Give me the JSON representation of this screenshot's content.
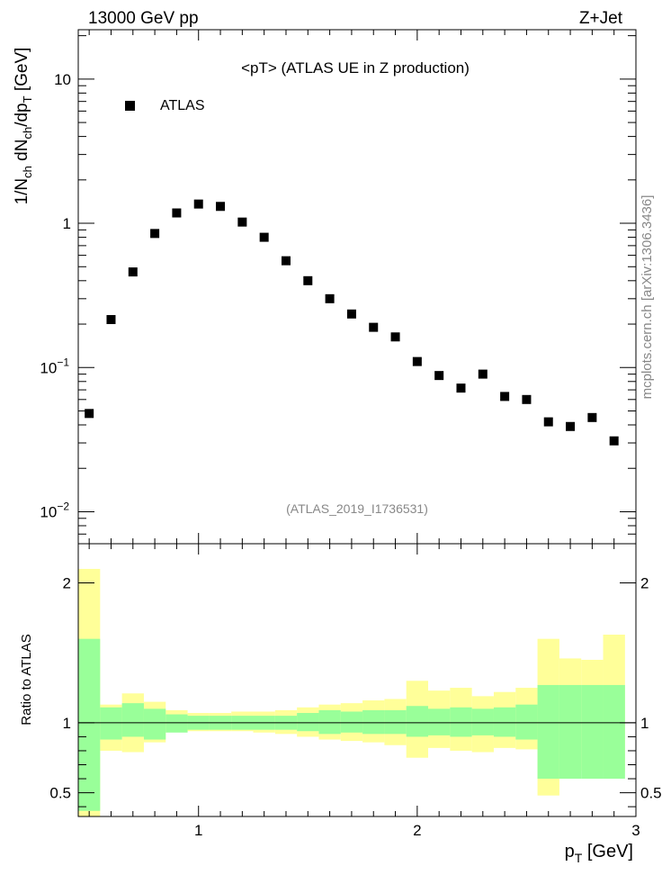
{
  "header": {
    "left": "13000 GeV pp",
    "right": "Z+Jet"
  },
  "side_label": "mcplots.cern.ch [arXiv:1306.3436]",
  "chart_data": [
    {
      "type": "scatter",
      "title": "<pT> (ATLAS UE in Z production)",
      "analysis_tag": "(ATLAS_2019_I1736531)",
      "xlabel": "p_T [GeV]",
      "ylabel": "1/N_ch dN_ch/dp_T [GeV]",
      "yscale": "log",
      "xlim": [
        0.45,
        3.0
      ],
      "ylim": [
        0.006,
        22
      ],
      "legend": {
        "position": "top-left",
        "entries": [
          "ATLAS"
        ]
      },
      "x_ticks": [
        1,
        2,
        3
      ],
      "y_ticks": [
        {
          "value": 10,
          "label": "10",
          "sup": ""
        },
        {
          "value": 1,
          "label": "1",
          "sup": ""
        },
        {
          "value": 0.1,
          "label": "10",
          "sup": "−1"
        },
        {
          "value": 0.01,
          "label": "10",
          "sup": "−2"
        }
      ],
      "series": [
        {
          "name": "ATLAS",
          "x": [
            0.5,
            0.6,
            0.7,
            0.8,
            0.9,
            1.0,
            1.1,
            1.2,
            1.3,
            1.4,
            1.5,
            1.6,
            1.7,
            1.8,
            1.9,
            2.0,
            2.1,
            2.2,
            2.3,
            2.4,
            2.5,
            2.6,
            2.7,
            2.8,
            2.9
          ],
          "y": [
            0.048,
            0.215,
            0.46,
            0.85,
            1.18,
            1.36,
            1.31,
            1.02,
            0.8,
            0.55,
            0.4,
            0.3,
            0.235,
            0.19,
            0.163,
            0.11,
            0.088,
            0.072,
            0.09,
            0.063,
            0.06,
            0.042,
            0.039,
            0.045,
            0.031
          ]
        }
      ]
    },
    {
      "type": "area",
      "ylabel": "Ratio to ATLAS",
      "xlabel": "p_T [GeV]",
      "xlim": [
        0.45,
        3.0
      ],
      "ylim": [
        0.33,
        2.28
      ],
      "x_ticks": [
        1,
        2,
        3
      ],
      "y_ticks": [
        0.5,
        1,
        2
      ],
      "reference_line": 1,
      "bins": [
        0.45,
        0.55,
        0.65,
        0.75,
        0.85,
        0.95,
        1.05,
        1.15,
        1.25,
        1.35,
        1.45,
        1.55,
        1.65,
        1.75,
        1.85,
        1.95,
        2.05,
        2.15,
        2.25,
        2.35,
        2.45,
        2.55,
        2.65,
        2.75,
        2.85,
        2.95
      ],
      "bands": [
        {
          "name": "stat",
          "color": "#99ff99",
          "low": [
            0.37,
            0.88,
            0.9,
            0.88,
            0.93,
            0.95,
            0.95,
            0.95,
            0.95,
            0.95,
            0.94,
            0.92,
            0.93,
            0.92,
            0.92,
            0.9,
            0.91,
            0.9,
            0.91,
            0.9,
            0.88,
            0.6,
            0.6,
            0.6,
            0.6
          ],
          "high": [
            1.6,
            1.11,
            1.14,
            1.1,
            1.06,
            1.05,
            1.05,
            1.05,
            1.05,
            1.05,
            1.07,
            1.09,
            1.08,
            1.09,
            1.09,
            1.12,
            1.1,
            1.11,
            1.1,
            1.11,
            1.13,
            1.27,
            1.27,
            1.27,
            1.27
          ]
        },
        {
          "name": "total",
          "color": "#ffff99",
          "low": [
            0.33,
            0.8,
            0.79,
            0.86,
            0.94,
            0.94,
            0.94,
            0.94,
            0.93,
            0.92,
            0.9,
            0.88,
            0.87,
            0.86,
            0.84,
            0.75,
            0.82,
            0.8,
            0.79,
            0.82,
            0.81,
            0.48,
            0.66,
            0.66,
            0.65
          ],
          "high": [
            2.1,
            1.13,
            1.21,
            1.15,
            1.09,
            1.07,
            1.07,
            1.08,
            1.08,
            1.09,
            1.11,
            1.13,
            1.14,
            1.16,
            1.17,
            1.3,
            1.23,
            1.25,
            1.19,
            1.22,
            1.25,
            1.6,
            1.46,
            1.45,
            1.63
          ]
        }
      ]
    }
  ]
}
